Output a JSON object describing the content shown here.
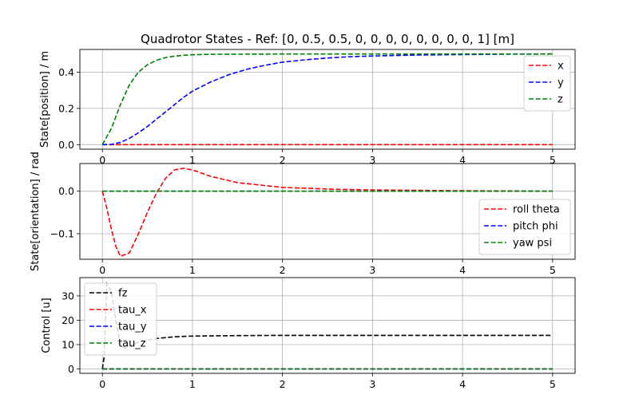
{
  "title": "Quadrotor States - Ref: [0, 0.5, 0.5, 0, 0, 0, 0, 0, 0, 0, 0, 1] [m]",
  "chart_data": [
    {
      "type": "line",
      "ylabel": "State[position] / m",
      "xlim": [
        -0.25,
        5.25
      ],
      "ylim": [
        -0.025,
        0.525
      ],
      "xticks": [
        "0",
        "1",
        "2",
        "3",
        "4",
        "5"
      ],
      "yticks": [
        0.0,
        0.2,
        0.4
      ],
      "ytick_labels": [
        "0.0",
        "0.2",
        "0.4"
      ],
      "grid": true,
      "legend_position": "top-right",
      "series": [
        {
          "name": "x",
          "color": "#ff0000",
          "x": [
            0,
            5
          ],
          "y": [
            0,
            0
          ]
        },
        {
          "name": "y",
          "color": "#0000ff",
          "x": [
            0,
            0.1,
            0.2,
            0.3,
            0.4,
            0.5,
            0.6,
            0.7,
            0.8,
            0.9,
            1.0,
            1.2,
            1.4,
            1.6,
            1.8,
            2.0,
            2.25,
            2.5,
            2.75,
            3.0,
            3.5,
            4.0,
            4.5,
            5.0
          ],
          "y": [
            0,
            0.002,
            0.012,
            0.035,
            0.065,
            0.1,
            0.14,
            0.18,
            0.22,
            0.26,
            0.295,
            0.345,
            0.385,
            0.415,
            0.437,
            0.455,
            0.468,
            0.478,
            0.485,
            0.489,
            0.494,
            0.497,
            0.499,
            0.5
          ]
        },
        {
          "name": "z",
          "color": "#008000",
          "x": [
            0,
            0.1,
            0.2,
            0.3,
            0.4,
            0.5,
            0.6,
            0.7,
            0.8,
            0.9,
            1.0,
            1.2,
            1.5,
            2.0,
            2.5,
            3.0,
            4.0,
            5.0
          ],
          "y": [
            0,
            0.09,
            0.22,
            0.33,
            0.4,
            0.44,
            0.465,
            0.48,
            0.488,
            0.493,
            0.496,
            0.498,
            0.499,
            0.5,
            0.5,
            0.5,
            0.5,
            0.5
          ]
        }
      ]
    },
    {
      "type": "line",
      "ylabel": "State[orientation] / rad",
      "xlim": [
        -0.25,
        5.25
      ],
      "ylim": [
        -0.16,
        0.065
      ],
      "xticks": [
        "0",
        "1",
        "2",
        "3",
        "4",
        "5"
      ],
      "yticks": [
        -0.1,
        0.0
      ],
      "ytick_labels": [
        "−0.1",
        "0.0"
      ],
      "grid": true,
      "legend_position": "lower-right",
      "series": [
        {
          "name": "roll theta",
          "color": "#ff0000",
          "x": [
            0,
            0.05,
            0.1,
            0.15,
            0.2,
            0.3,
            0.4,
            0.5,
            0.6,
            0.7,
            0.8,
            0.9,
            1.0,
            1.2,
            1.5,
            2.0,
            2.5,
            3.0,
            4.0,
            5.0
          ],
          "y": [
            0,
            -0.04,
            -0.09,
            -0.13,
            -0.153,
            -0.145,
            -0.1,
            -0.05,
            -0.005,
            0.03,
            0.05,
            0.054,
            0.05,
            0.035,
            0.02,
            0.009,
            0.005,
            0.003,
            0.001,
            0.0
          ]
        },
        {
          "name": "pitch phi",
          "color": "#0000ff",
          "x": [
            0,
            5
          ],
          "y": [
            0,
            0
          ]
        },
        {
          "name": "yaw psi",
          "color": "#008000",
          "x": [
            0,
            5
          ],
          "y": [
            0,
            0
          ]
        }
      ]
    },
    {
      "type": "line",
      "ylabel": "Control [u]",
      "xlim": [
        -0.25,
        5.25
      ],
      "ylim": [
        -1.8,
        37.5
      ],
      "xticks": [
        "0",
        "1",
        "2",
        "3",
        "4",
        "5"
      ],
      "yticks": [
        0,
        10,
        20,
        30
      ],
      "ytick_labels": [
        "0",
        "10",
        "20",
        "30"
      ],
      "grid": true,
      "legend_position": "top-left",
      "series": [
        {
          "name": "fz",
          "color": "#000000",
          "x": [
            0,
            0.02,
            0.05,
            0.1,
            0.13,
            0.2,
            0.25,
            0.3,
            0.4,
            0.5,
            0.6,
            0.8,
            1.0,
            1.5,
            2.0,
            3.0,
            5.0
          ],
          "y": [
            0,
            5,
            35,
            32,
            24,
            10,
            8.5,
            9.5,
            11,
            11.8,
            12.5,
            13.2,
            13.5,
            13.7,
            13.8,
            13.8,
            13.8
          ]
        },
        {
          "name": "tau_x",
          "color": "#ff0000",
          "x": [
            0,
            5
          ],
          "y": [
            0,
            0
          ]
        },
        {
          "name": "tau_y",
          "color": "#0000ff",
          "x": [
            0,
            5
          ],
          "y": [
            0,
            0
          ]
        },
        {
          "name": "tau_z",
          "color": "#008000",
          "x": [
            0,
            5
          ],
          "y": [
            0,
            0
          ]
        }
      ]
    }
  ]
}
